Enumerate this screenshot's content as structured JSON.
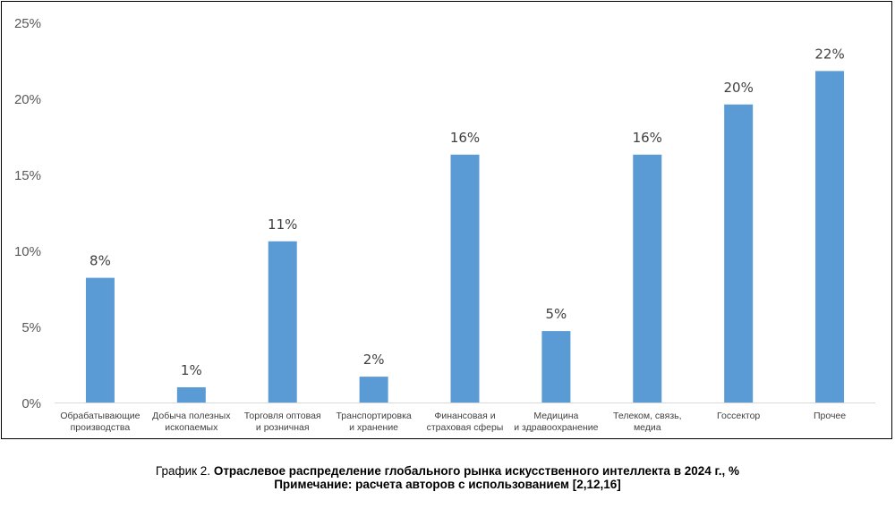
{
  "chart_data": {
    "type": "bar",
    "categories": [
      [
        "Обрабатывающие",
        "производства"
      ],
      [
        "Добыча полезных",
        "ископаемых"
      ],
      [
        "Торговля оптовая",
        "и розничная"
      ],
      [
        "Транспортировка",
        "и хранение"
      ],
      [
        "Финансовая и",
        "страховая сферы"
      ],
      [
        "Медицина",
        "и здравоохранение"
      ],
      [
        "Телеком, связь,",
        "медиа"
      ],
      [
        "Госсектор"
      ],
      [
        "Прочее"
      ]
    ],
    "values": [
      8.2,
      1.0,
      10.6,
      1.7,
      16.3,
      4.7,
      16.3,
      19.6,
      21.8
    ],
    "data_labels": [
      "8%",
      "1%",
      "11%",
      "2%",
      "16%",
      "5%",
      "16%",
      "20%",
      "22%"
    ],
    "y_ticks": [
      0,
      5,
      10,
      15,
      20,
      25
    ],
    "y_tick_labels": [
      "0%",
      "5%",
      "10%",
      "15%",
      "20%",
      "25%"
    ],
    "ylim": [
      0,
      25
    ],
    "grid": false,
    "bar_color": "#5b9bd5"
  },
  "caption": {
    "prefix": "График 2. ",
    "title": "Отраслевое распределение глобального рынка искусственного интеллекта в 2024 г., %",
    "note": "Примечание: расчета авторов с использованием [2,12,16]"
  }
}
